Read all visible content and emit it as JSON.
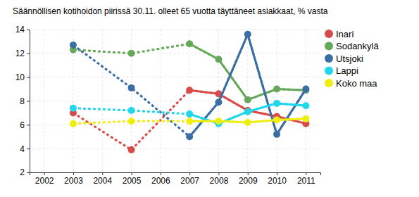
{
  "chart_data": {
    "type": "line",
    "title": "Säännöllisen kotihoidon piirissä 30.11. olleet 65 vuotta täyttäneet asiakkaat, % vasta",
    "x": [
      2003,
      2005,
      2007,
      2008,
      2009,
      2010,
      2011
    ],
    "series": [
      {
        "name": "Inari",
        "color": "#d84b4b",
        "values": [
          7.0,
          3.9,
          8.9,
          8.6,
          7.2,
          6.7,
          6.1
        ]
      },
      {
        "name": "Sodankylä",
        "color": "#66a85a",
        "values": [
          12.3,
          12.0,
          12.8,
          11.5,
          8.1,
          9.0,
          8.9
        ]
      },
      {
        "name": "Utsjoki",
        "color": "#3a6ea5",
        "values": [
          12.7,
          9.1,
          5.0,
          7.9,
          13.6,
          5.2,
          9.0
        ]
      },
      {
        "name": "Lappi",
        "color": "#22d6ec",
        "values": [
          7.4,
          7.2,
          6.9,
          6.1,
          7.1,
          7.8,
          7.6
        ]
      },
      {
        "name": "Koko maa",
        "color": "#eeee11",
        "values": [
          6.1,
          6.3,
          6.3,
          6.3,
          6.2,
          6.4,
          6.5
        ]
      }
    ],
    "xlim": [
      2001.5,
      2011.5
    ],
    "xticks": [
      2002,
      2003,
      2004,
      2005,
      2006,
      2007,
      2008,
      2009,
      2010,
      2011
    ],
    "ylim": [
      2,
      14
    ],
    "yticks": [
      2,
      4,
      6,
      8,
      10,
      12,
      14
    ],
    "grid": true,
    "legend": "right",
    "marker": "circle"
  }
}
